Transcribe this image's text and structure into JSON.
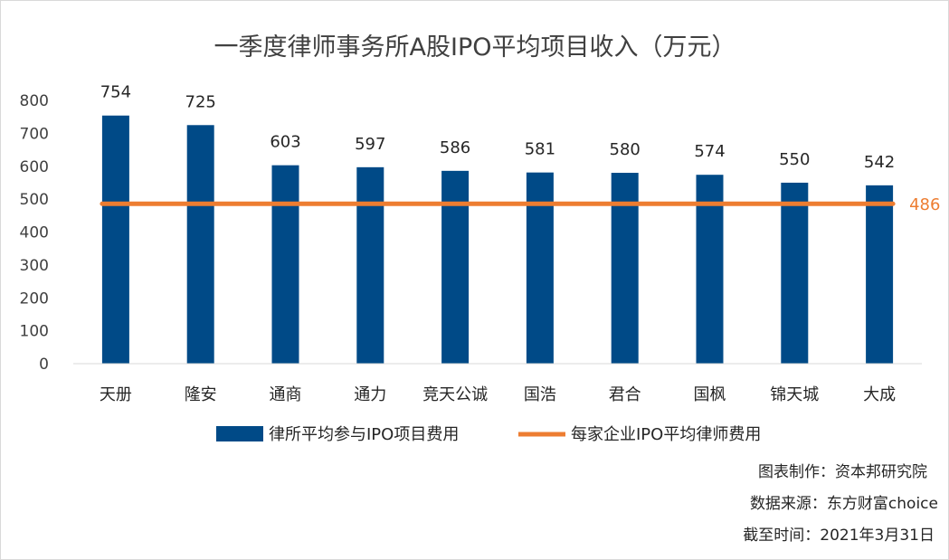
{
  "chart_data": {
    "type": "bar",
    "title": "一季度律师事务所A股IPO平均项目收入（万元）",
    "categories": [
      "天册",
      "隆安",
      "通商",
      "通力",
      "竞天公诚",
      "国浩",
      "君合",
      "国枫",
      "锦天城",
      "大成"
    ],
    "series": [
      {
        "name": "律所平均参与IPO项目费用",
        "values": [
          754,
          725,
          603,
          597,
          586,
          581,
          580,
          574,
          550,
          542
        ],
        "color": "#004a87"
      }
    ],
    "reference_line": {
      "name": "每家企业IPO平均律师费用",
      "value": 486,
      "label": "486",
      "color": "#ed7d31"
    },
    "ylim": [
      0,
      800
    ],
    "yticks": [
      "0",
      "100",
      "200",
      "300",
      "400",
      "500",
      "600",
      "700",
      "800"
    ],
    "grid": false,
    "legend_position": "bottom"
  },
  "footer": {
    "made_by": "图表制作：资本邦研究院",
    "source": "数据来源：东方财富choice",
    "date": "截至时间：2021年3月31日"
  }
}
